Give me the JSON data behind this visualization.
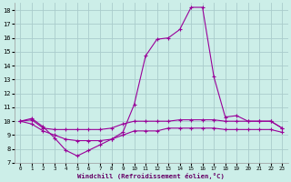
{
  "xlabel": "Windchill (Refroidissement éolien,°C)",
  "background_color": "#cceee8",
  "grid_color": "#aacccc",
  "line_color": "#990099",
  "hours": [
    0,
    1,
    2,
    3,
    4,
    5,
    6,
    7,
    8,
    9,
    10,
    11,
    12,
    13,
    14,
    15,
    16,
    17,
    18,
    19,
    20,
    21,
    22,
    23
  ],
  "line1": [
    10.0,
    10.2,
    9.6,
    8.8,
    7.9,
    7.5,
    7.9,
    8.3,
    8.7,
    9.2,
    11.2,
    14.7,
    15.9,
    16.0,
    16.6,
    18.2,
    18.2,
    13.2,
    10.3,
    10.4,
    10.0,
    10.0,
    10.0,
    9.5
  ],
  "line2": [
    10.0,
    10.1,
    9.5,
    9.4,
    9.4,
    9.4,
    9.4,
    9.4,
    9.5,
    9.8,
    10.0,
    10.0,
    10.0,
    10.0,
    10.1,
    10.1,
    10.1,
    10.1,
    10.0,
    10.0,
    10.0,
    10.0,
    10.0,
    9.5
  ],
  "line3": [
    10.0,
    9.8,
    9.3,
    9.0,
    8.7,
    8.6,
    8.6,
    8.6,
    8.7,
    9.0,
    9.3,
    9.3,
    9.3,
    9.5,
    9.5,
    9.5,
    9.5,
    9.5,
    9.4,
    9.4,
    9.4,
    9.4,
    9.4,
    9.2
  ],
  "xlim": [
    -0.5,
    23.5
  ],
  "ylim": [
    7,
    18.5
  ],
  "xticks": [
    0,
    1,
    2,
    3,
    4,
    5,
    6,
    7,
    8,
    9,
    10,
    11,
    12,
    13,
    14,
    15,
    16,
    17,
    18,
    19,
    20,
    21,
    22,
    23
  ],
  "yticks": [
    7,
    8,
    9,
    10,
    11,
    12,
    13,
    14,
    15,
    16,
    17,
    18
  ]
}
